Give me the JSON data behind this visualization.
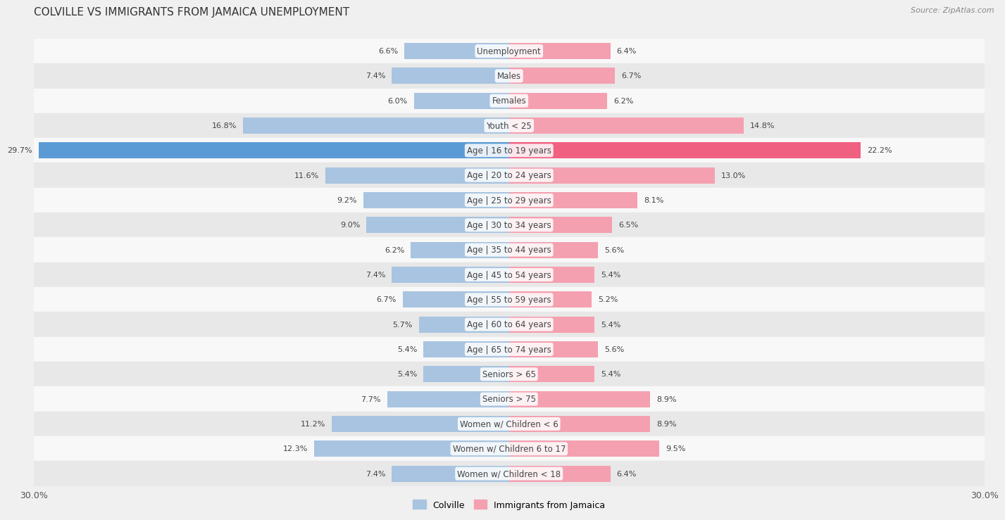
{
  "title": "COLVILLE VS IMMIGRANTS FROM JAMAICA UNEMPLOYMENT",
  "source": "Source: ZipAtlas.com",
  "categories": [
    "Unemployment",
    "Males",
    "Females",
    "Youth < 25",
    "Age | 16 to 19 years",
    "Age | 20 to 24 years",
    "Age | 25 to 29 years",
    "Age | 30 to 34 years",
    "Age | 35 to 44 years",
    "Age | 45 to 54 years",
    "Age | 55 to 59 years",
    "Age | 60 to 64 years",
    "Age | 65 to 74 years",
    "Seniors > 65",
    "Seniors > 75",
    "Women w/ Children < 6",
    "Women w/ Children 6 to 17",
    "Women w/ Children < 18"
  ],
  "left_values": [
    6.6,
    7.4,
    6.0,
    16.8,
    29.7,
    11.6,
    9.2,
    9.0,
    6.2,
    7.4,
    6.7,
    5.7,
    5.4,
    5.4,
    7.7,
    11.2,
    12.3,
    7.4
  ],
  "right_values": [
    6.4,
    6.7,
    6.2,
    14.8,
    22.2,
    13.0,
    8.1,
    6.5,
    5.6,
    5.4,
    5.2,
    5.4,
    5.6,
    5.4,
    8.9,
    8.9,
    9.5,
    6.4
  ],
  "left_color": "#a8c4e0",
  "right_color": "#f4a0b0",
  "highlight_left_color": "#5b9bd5",
  "highlight_right_color": "#f06080",
  "highlight_row": 4,
  "x_max": 30.0,
  "bg_color": "#f0f0f0",
  "row_bg_light": "#f8f8f8",
  "row_bg_dark": "#e8e8e8",
  "legend_left": "Colville",
  "legend_right": "Immigrants from Jamaica",
  "title_fontsize": 11,
  "label_fontsize": 8.5,
  "value_fontsize": 8.0
}
